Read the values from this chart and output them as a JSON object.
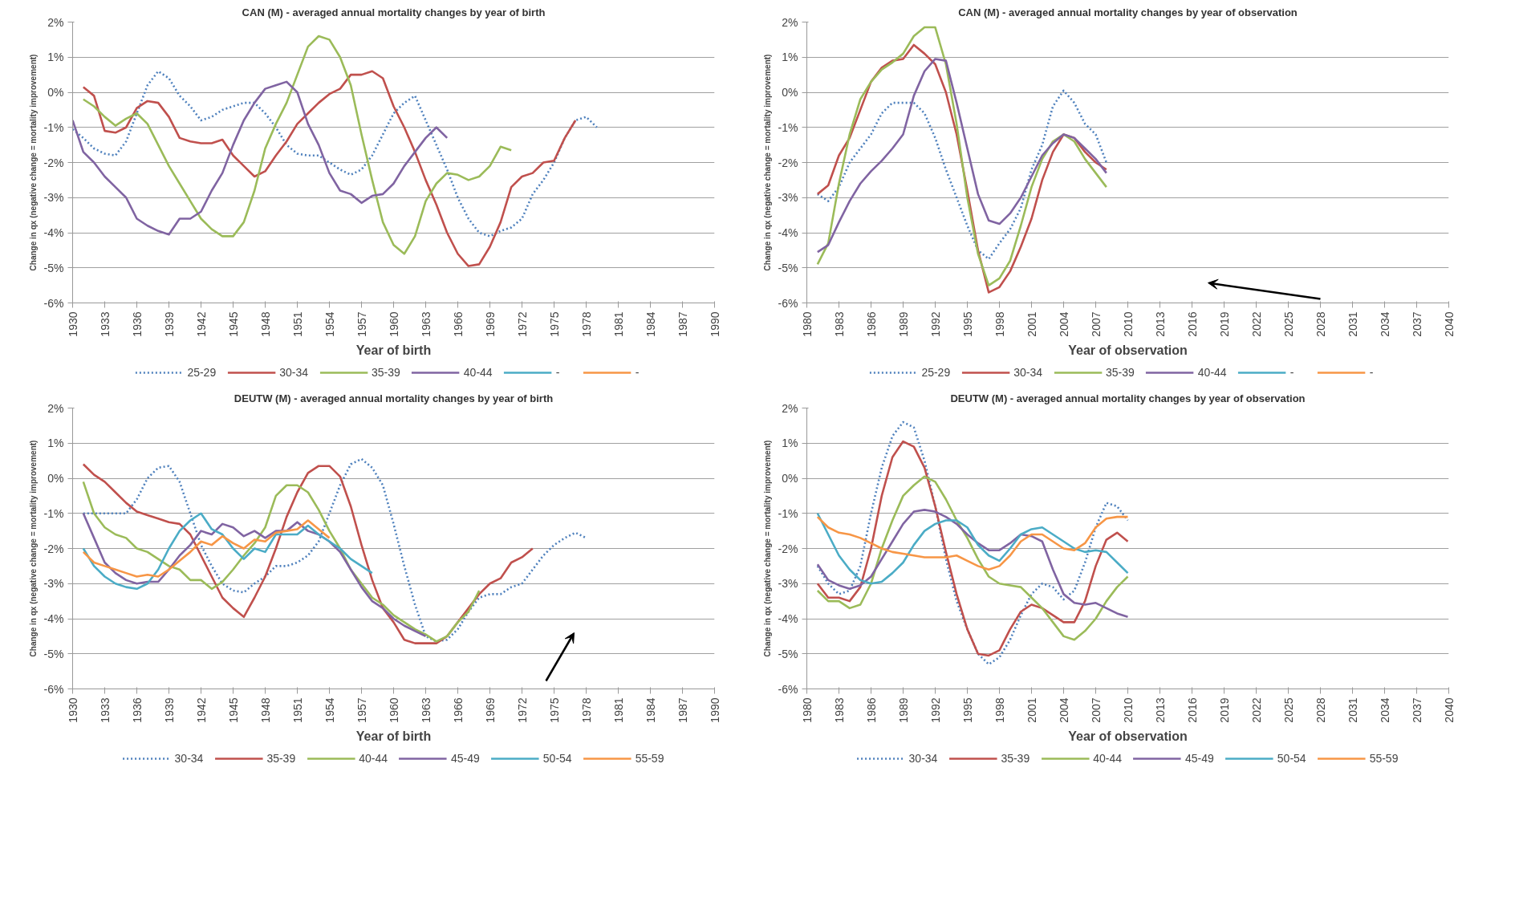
{
  "chart_data": [
    {
      "type": "line",
      "title": "CAN (M) - averaged annual mortality changes by year of birth",
      "xlabel": "Year of birth",
      "ylabel": "Change in qx (negative change = mortality improvement)",
      "x": [
        1930,
        1931,
        1932,
        1933,
        1934,
        1935,
        1936,
        1937,
        1938,
        1939,
        1940,
        1941,
        1942,
        1943,
        1944,
        1945,
        1946,
        1947,
        1948,
        1949,
        1950,
        1951,
        1952,
        1953,
        1954,
        1955,
        1956,
        1957,
        1958,
        1959,
        1960,
        1961,
        1962,
        1963,
        1964,
        1965,
        1966,
        1967,
        1968,
        1969,
        1970,
        1971,
        1972,
        1973,
        1974,
        1975,
        1976,
        1977,
        1978,
        1979
      ],
      "xlim": [
        1930,
        1990
      ],
      "xticks": [
        1930,
        1933,
        1936,
        1939,
        1942,
        1945,
        1948,
        1951,
        1954,
        1957,
        1960,
        1963,
        1966,
        1969,
        1972,
        1975,
        1978,
        1981,
        1984,
        1987,
        1990
      ],
      "ylim": [
        -6,
        2
      ],
      "yticks": [
        {
          "value": -6,
          "label": "-6%"
        },
        {
          "value": -5,
          "label": "-5%"
        },
        {
          "value": -4,
          "label": "-4%"
        },
        {
          "value": -3,
          "label": "-3%"
        },
        {
          "value": -2,
          "label": "-2%"
        },
        {
          "value": -1,
          "label": "-1%"
        },
        {
          "value": 0,
          "label": "0%"
        },
        {
          "value": 1,
          "label": "1%"
        },
        {
          "value": 2,
          "label": "2%"
        }
      ],
      "grid": "y",
      "legend": "bottom",
      "series": [
        {
          "name": "25-29",
          "color": "#4f81bd",
          "line_style": "dotted",
          "values": [
            -1.05,
            -1.3,
            -1.6,
            -1.75,
            -1.8,
            -1.4,
            -0.6,
            0.2,
            0.6,
            0.4,
            -0.1,
            -0.4,
            -0.8,
            -0.7,
            -0.5,
            -0.4,
            -0.3,
            -0.3,
            -0.6,
            -1.0,
            -1.5,
            -1.75,
            -1.8,
            -1.8,
            -2.0,
            -2.2,
            -2.35,
            -2.2,
            -1.8,
            -1.2,
            -0.6,
            -0.3,
            -0.1,
            -0.8,
            -1.5,
            -2.2,
            -3.0,
            -3.6,
            -4.0,
            -4.1,
            -3.95,
            -3.85,
            -3.6,
            -2.9,
            -2.5,
            -2.0,
            -1.3,
            -0.8,
            -0.7,
            -1.0
          ]
        },
        {
          "name": "30-34",
          "color": "#c0504d",
          "values": [
            null,
            0.15,
            -0.1,
            -1.1,
            -1.15,
            -1.0,
            -0.45,
            -0.25,
            -0.3,
            -0.7,
            -1.3,
            -1.4,
            -1.45,
            -1.45,
            -1.35,
            -1.8,
            -2.1,
            -2.4,
            -2.25,
            -1.8,
            -1.4,
            -0.9,
            -0.6,
            -0.3,
            -0.05,
            0.1,
            0.5,
            0.5,
            0.6,
            0.4,
            -0.4,
            -1.0,
            -1.7,
            -2.5,
            -3.2,
            -4.0,
            -4.6,
            -4.95,
            -4.9,
            -4.4,
            -3.7,
            -2.7,
            -2.4,
            -2.3,
            -2.0,
            -1.95,
            -1.3,
            -0.8,
            null,
            null
          ]
        },
        {
          "name": "35-39",
          "color": "#9bbb59",
          "values": [
            null,
            -0.2,
            -0.4,
            -0.7,
            -0.95,
            -0.75,
            -0.6,
            -0.9,
            -1.5,
            -2.1,
            -2.6,
            -3.1,
            -3.6,
            -3.9,
            -4.1,
            -4.1,
            -3.7,
            -2.8,
            -1.6,
            -0.9,
            -0.3,
            0.5,
            1.3,
            1.6,
            1.5,
            1.0,
            0.2,
            -1.2,
            -2.5,
            -3.7,
            -4.35,
            -4.6,
            -4.1,
            -3.1,
            -2.6,
            -2.3,
            -2.35,
            -2.5,
            -2.4,
            -2.1,
            -1.55,
            -1.65,
            null,
            null,
            null,
            null,
            null,
            null,
            null,
            null
          ]
        },
        {
          "name": "40-44",
          "color": "#8064a2",
          "values": [
            -0.8,
            -1.7,
            -2.0,
            -2.4,
            -2.7,
            -3.0,
            -3.6,
            -3.8,
            -3.95,
            -4.05,
            -3.6,
            -3.6,
            -3.4,
            -2.8,
            -2.3,
            -1.5,
            -0.8,
            -0.3,
            0.1,
            0.2,
            0.3,
            0.0,
            -0.9,
            -1.5,
            -2.3,
            -2.8,
            -2.9,
            -3.15,
            -2.95,
            -2.9,
            -2.6,
            -2.1,
            -1.7,
            -1.3,
            -1.0,
            -1.3,
            null,
            null,
            null,
            null,
            null,
            null,
            null,
            null,
            null,
            null,
            null,
            null,
            null,
            null
          ]
        },
        {
          "name": "-",
          "color": "#4bacc6",
          "values": [
            null,
            null,
            null,
            null,
            null,
            null,
            null,
            null,
            null,
            null,
            null,
            null,
            null,
            null,
            null,
            null,
            null,
            null,
            null,
            null,
            null,
            null,
            null,
            null,
            null,
            null,
            null,
            null,
            null,
            null,
            null,
            null,
            null,
            null,
            null,
            null,
            null,
            null,
            null,
            null,
            null,
            null,
            null,
            null,
            null,
            null,
            null,
            null,
            null,
            null
          ]
        },
        {
          "name": "-",
          "color": "#f79646",
          "values": [
            null,
            null,
            null,
            null,
            null,
            null,
            null,
            null,
            null,
            null,
            null,
            null,
            null,
            null,
            null,
            null,
            null,
            null,
            null,
            null,
            null,
            null,
            null,
            null,
            null,
            null,
            null,
            null,
            null,
            null,
            null,
            null,
            null,
            null,
            null,
            null,
            null,
            null,
            null,
            null,
            null,
            null,
            null,
            null,
            null,
            null,
            null,
            null,
            null,
            null
          ]
        }
      ]
    },
    {
      "type": "line",
      "title": "CAN (M) - averaged annual mortality changes by year of observation",
      "xlabel": "Year of observation",
      "ylabel": "Change in qx (negative change = mortality improvement)",
      "x": [
        1981,
        1982,
        1983,
        1984,
        1985,
        1986,
        1987,
        1988,
        1989,
        1990,
        1991,
        1992,
        1993,
        1994,
        1995,
        1996,
        1997,
        1998,
        1999,
        2000,
        2001,
        2002,
        2003,
        2004,
        2005,
        2006,
        2007,
        2008
      ],
      "xlim": [
        1980,
        2040
      ],
      "xticks": [
        1980,
        1983,
        1986,
        1989,
        1992,
        1995,
        1998,
        2001,
        2004,
        2007,
        2010,
        2013,
        2016,
        2019,
        2022,
        2025,
        2028,
        2031,
        2034,
        2037,
        2040
      ],
      "ylim": [
        -6,
        2
      ],
      "yticks": [
        {
          "value": -6,
          "label": "-6%"
        },
        {
          "value": -5,
          "label": "-5%"
        },
        {
          "value": -4,
          "label": "-4%"
        },
        {
          "value": -3,
          "label": "-3%"
        },
        {
          "value": -2,
          "label": "-2%"
        },
        {
          "value": -1,
          "label": "-1%"
        },
        {
          "value": 0,
          "label": "0%"
        },
        {
          "value": 1,
          "label": "1%"
        },
        {
          "value": 2,
          "label": "2%"
        }
      ],
      "grid": "y",
      "legend": "bottom",
      "series": [
        {
          "name": "25-29",
          "color": "#4f81bd",
          "line_style": "dotted",
          "values": [
            -2.9,
            -3.1,
            -2.7,
            -2.0,
            -1.6,
            -1.2,
            -0.6,
            -0.3,
            -0.3,
            -0.3,
            -0.6,
            -1.3,
            -2.2,
            -3.0,
            -3.8,
            -4.5,
            -4.75,
            -4.3,
            -3.9,
            -3.3,
            -2.2,
            -1.5,
            -0.4,
            0.05,
            -0.3,
            -0.9,
            -1.2,
            -2.0
          ]
        },
        {
          "name": "30-34",
          "color": "#c0504d",
          "values": [
            -2.9,
            -2.65,
            -1.8,
            -1.3,
            -0.5,
            0.3,
            0.7,
            0.9,
            0.95,
            1.35,
            1.1,
            0.8,
            0.0,
            -1.2,
            -2.8,
            -4.5,
            -5.7,
            -5.55,
            -5.1,
            -4.4,
            -3.6,
            -2.5,
            -1.7,
            -1.2,
            -1.3,
            -1.7,
            -2.0,
            -2.2
          ]
        },
        {
          "name": "35-39",
          "color": "#9bbb59",
          "values": [
            -4.9,
            -4.3,
            -2.6,
            -1.2,
            -0.2,
            0.3,
            0.65,
            0.85,
            1.1,
            1.6,
            1.85,
            1.85,
            0.8,
            -0.9,
            -3.0,
            -4.6,
            -5.5,
            -5.3,
            -4.8,
            -3.8,
            -2.7,
            -1.9,
            -1.4,
            -1.2,
            -1.4,
            -1.9,
            -2.3,
            -2.7
          ]
        },
        {
          "name": "40-44",
          "color": "#8064a2",
          "values": [
            -4.55,
            -4.35,
            -3.7,
            -3.1,
            -2.6,
            -2.25,
            -1.95,
            -1.6,
            -1.2,
            -0.1,
            0.6,
            0.95,
            0.9,
            -0.3,
            -1.6,
            -2.9,
            -3.65,
            -3.75,
            -3.45,
            -3.0,
            -2.4,
            -1.8,
            -1.45,
            -1.2,
            -1.3,
            -1.6,
            -1.9,
            -2.3
          ]
        },
        {
          "name": "-",
          "color": "#4bacc6",
          "values": [
            null,
            null,
            null,
            null,
            null,
            null,
            null,
            null,
            null,
            null,
            null,
            null,
            null,
            null,
            null,
            null,
            null,
            null,
            null,
            null,
            null,
            null,
            null,
            null,
            null,
            null,
            null,
            null
          ]
        },
        {
          "name": "-",
          "color": "#f79646",
          "values": [
            null,
            null,
            null,
            null,
            null,
            null,
            null,
            null,
            null,
            null,
            null,
            null,
            null,
            null,
            null,
            null,
            null,
            null,
            null,
            null,
            null,
            null,
            null,
            null,
            null,
            null,
            null,
            null
          ]
        }
      ]
    },
    {
      "type": "line",
      "title": "DEUTW (M) - averaged annual mortality changes by year of birth",
      "xlabel": "Year of birth",
      "ylabel": "Change in qx (negative change = mortality improvement)",
      "x": [
        1931,
        1932,
        1933,
        1934,
        1935,
        1936,
        1937,
        1938,
        1939,
        1940,
        1941,
        1942,
        1943,
        1944,
        1945,
        1946,
        1947,
        1948,
        1949,
        1950,
        1951,
        1952,
        1953,
        1954,
        1955,
        1956,
        1957,
        1958,
        1959,
        1960,
        1961,
        1962,
        1963,
        1964,
        1965,
        1966,
        1967,
        1968,
        1969,
        1970,
        1971,
        1972,
        1973,
        1974,
        1975,
        1976,
        1977,
        1978
      ],
      "xlim": [
        1930,
        1990
      ],
      "xticks": [
        1930,
        1933,
        1936,
        1939,
        1942,
        1945,
        1948,
        1951,
        1954,
        1957,
        1960,
        1963,
        1966,
        1969,
        1972,
        1975,
        1978,
        1981,
        1984,
        1987,
        1990
      ],
      "ylim": [
        -6,
        2
      ],
      "yticks": [
        {
          "value": -6,
          "label": "-6%"
        },
        {
          "value": -5,
          "label": "-5%"
        },
        {
          "value": -4,
          "label": "-4%"
        },
        {
          "value": -3,
          "label": "-3%"
        },
        {
          "value": -2,
          "label": "-2%"
        },
        {
          "value": -1,
          "label": "-1%"
        },
        {
          "value": 0,
          "label": "0%"
        },
        {
          "value": 1,
          "label": "1%"
        },
        {
          "value": 2,
          "label": "2%"
        }
      ],
      "grid": "y",
      "legend": "bottom",
      "series": [
        {
          "name": "30-34",
          "color": "#4f81bd",
          "line_style": "dotted",
          "values": [
            -1.0,
            -1.0,
            -1.0,
            -1.0,
            -1.0,
            -0.6,
            0.0,
            0.3,
            0.35,
            -0.1,
            -1.0,
            -1.9,
            -2.5,
            -3.0,
            -3.2,
            -3.25,
            -3.0,
            -2.8,
            -2.5,
            -2.5,
            -2.4,
            -2.2,
            -1.8,
            -1.0,
            -0.2,
            0.4,
            0.55,
            0.3,
            -0.2,
            -1.3,
            -2.5,
            -3.6,
            -4.5,
            -4.65,
            -4.6,
            -4.3,
            -3.8,
            -3.4,
            -3.3,
            -3.3,
            -3.1,
            -3.0,
            -2.6,
            -2.2,
            -1.9,
            -1.7,
            -1.55,
            -1.7
          ]
        },
        {
          "name": "35-39",
          "color": "#c0504d",
          "values": [
            0.4,
            0.1,
            -0.1,
            -0.4,
            -0.7,
            -0.95,
            -1.05,
            -1.15,
            -1.25,
            -1.3,
            -1.6,
            -2.2,
            -2.8,
            -3.4,
            -3.7,
            -3.95,
            -3.4,
            -2.8,
            -2.0,
            -1.1,
            -0.4,
            0.15,
            0.35,
            0.35,
            0.05,
            -0.8,
            -1.9,
            -2.9,
            -3.7,
            -4.1,
            -4.6,
            -4.7,
            -4.7,
            -4.7,
            -4.5,
            -4.1,
            -3.7,
            -3.3,
            -3.0,
            -2.85,
            -2.4,
            -2.25,
            -2.0,
            null,
            null,
            null,
            null,
            null
          ]
        },
        {
          "name": "40-44",
          "color": "#9bbb59",
          "values": [
            -0.1,
            -1.0,
            -1.4,
            -1.6,
            -1.7,
            -2.0,
            -2.1,
            -2.3,
            -2.5,
            -2.6,
            -2.9,
            -2.9,
            -3.15,
            -2.95,
            -2.6,
            -2.2,
            -1.85,
            -1.4,
            -0.5,
            -0.2,
            -0.2,
            -0.4,
            -0.9,
            -1.5,
            -2.0,
            -2.6,
            -3.0,
            -3.4,
            -3.6,
            -3.9,
            -4.1,
            -4.3,
            -4.45,
            -4.65,
            -4.5,
            -4.1,
            -3.8,
            -3.2,
            null,
            null,
            null,
            null,
            null,
            null,
            null,
            null,
            null,
            null
          ]
        },
        {
          "name": "45-49",
          "color": "#8064a2",
          "values": [
            -1.0,
            -1.7,
            -2.4,
            -2.7,
            -2.9,
            -3.0,
            -2.95,
            -2.95,
            -2.6,
            -2.2,
            -1.9,
            -1.5,
            -1.6,
            -1.3,
            -1.4,
            -1.65,
            -1.5,
            -1.7,
            -1.5,
            -1.5,
            -1.25,
            -1.5,
            -1.6,
            -1.8,
            -2.1,
            -2.6,
            -3.1,
            -3.5,
            -3.7,
            -4.0,
            -4.2,
            -4.35,
            -4.5,
            null,
            null,
            null,
            null,
            null,
            null,
            null,
            null,
            null,
            null,
            null,
            null,
            null,
            null,
            null
          ]
        },
        {
          "name": "50-54",
          "color": "#4bacc6",
          "values": [
            -2.0,
            -2.5,
            -2.8,
            -3.0,
            -3.1,
            -3.15,
            -3.0,
            -2.6,
            -2.0,
            -1.5,
            -1.2,
            -1.0,
            -1.45,
            -1.6,
            -2.0,
            -2.3,
            -2.0,
            -2.1,
            -1.6,
            -1.6,
            -1.6,
            -1.35,
            -1.6,
            -1.8,
            -2.0,
            -2.3,
            -2.5,
            -2.7,
            null,
            null,
            null,
            null,
            null,
            null,
            null,
            null,
            null,
            null,
            null,
            null,
            null,
            null,
            null,
            null,
            null,
            null,
            null,
            null
          ]
        },
        {
          "name": "55-59",
          "color": "#f79646",
          "values": [
            -2.1,
            -2.4,
            -2.5,
            -2.6,
            -2.7,
            -2.8,
            -2.75,
            -2.8,
            -2.6,
            -2.35,
            -2.1,
            -1.8,
            -1.9,
            -1.65,
            -1.85,
            -2.0,
            -1.75,
            -1.8,
            -1.55,
            -1.5,
            -1.45,
            -1.2,
            -1.45,
            -1.7,
            null,
            null,
            null,
            null,
            null,
            null,
            null,
            null,
            null,
            null,
            null,
            null,
            null,
            null,
            null,
            null,
            null,
            null,
            null,
            null,
            null,
            null,
            null,
            null
          ]
        }
      ]
    },
    {
      "type": "line",
      "title": "DEUTW (M) - averaged annual mortality changes by year of observation",
      "xlabel": "Year of observation",
      "ylabel": "Change in qx (negative change = mortality improvement)",
      "x": [
        1981,
        1982,
        1983,
        1984,
        1985,
        1986,
        1987,
        1988,
        1989,
        1990,
        1991,
        1992,
        1993,
        1994,
        1995,
        1996,
        1997,
        1998,
        1999,
        2000,
        2001,
        2002,
        2003,
        2004,
        2005,
        2006,
        2007,
        2008,
        2009,
        2010
      ],
      "xlim": [
        1980,
        2040
      ],
      "xticks": [
        1980,
        1983,
        1986,
        1989,
        1992,
        1995,
        1998,
        2001,
        2004,
        2007,
        2010,
        2013,
        2016,
        2019,
        2022,
        2025,
        2028,
        2031,
        2034,
        2037,
        2040
      ],
      "ylim": [
        -6,
        2
      ],
      "yticks": [
        {
          "value": -6,
          "label": "-6%"
        },
        {
          "value": -5,
          "label": "-5%"
        },
        {
          "value": -4,
          "label": "-4%"
        },
        {
          "value": -3,
          "label": "-3%"
        },
        {
          "value": -2,
          "label": "-2%"
        },
        {
          "value": -1,
          "label": "-1%"
        },
        {
          "value": 0,
          "label": "0%"
        },
        {
          "value": 1,
          "label": "1%"
        },
        {
          "value": 2,
          "label": "2%"
        }
      ],
      "grid": "y",
      "legend": "bottom",
      "series": [
        {
          "name": "30-34",
          "color": "#4f81bd",
          "line_style": "dotted",
          "values": [
            -2.5,
            -3.0,
            -3.3,
            -3.2,
            -2.5,
            -1.0,
            0.3,
            1.2,
            1.6,
            1.45,
            0.5,
            -0.8,
            -2.3,
            -3.5,
            -4.3,
            -5.0,
            -5.3,
            -5.1,
            -4.6,
            -3.9,
            -3.3,
            -3.0,
            -3.1,
            -3.45,
            -3.2,
            -2.4,
            -1.4,
            -0.7,
            -0.8,
            -1.2
          ]
        },
        {
          "name": "35-39",
          "color": "#c0504d",
          "values": [
            -3.0,
            -3.4,
            -3.4,
            -3.5,
            -3.1,
            -2.0,
            -0.5,
            0.6,
            1.05,
            0.9,
            0.3,
            -0.8,
            -2.1,
            -3.3,
            -4.3,
            -5.0,
            -5.05,
            -4.9,
            -4.3,
            -3.8,
            -3.6,
            -3.7,
            -3.9,
            -4.1,
            -4.1,
            -3.5,
            -2.5,
            -1.75,
            -1.55,
            -1.8
          ]
        },
        {
          "name": "40-44",
          "color": "#9bbb59",
          "values": [
            -3.2,
            -3.5,
            -3.5,
            -3.7,
            -3.6,
            -3.0,
            -2.0,
            -1.2,
            -0.5,
            -0.2,
            0.05,
            -0.1,
            -0.6,
            -1.2,
            -1.7,
            -2.3,
            -2.8,
            -3.0,
            -3.05,
            -3.1,
            -3.4,
            -3.7,
            -4.1,
            -4.5,
            -4.6,
            -4.35,
            -4.0,
            -3.5,
            -3.1,
            -2.8
          ]
        },
        {
          "name": "45-49",
          "color": "#8064a2",
          "values": [
            -2.45,
            -2.9,
            -3.05,
            -3.15,
            -3.05,
            -2.8,
            -2.3,
            -1.8,
            -1.3,
            -0.95,
            -0.9,
            -0.95,
            -1.1,
            -1.3,
            -1.6,
            -1.85,
            -2.05,
            -2.05,
            -1.85,
            -1.6,
            -1.65,
            -1.8,
            -2.6,
            -3.3,
            -3.55,
            -3.6,
            -3.55,
            -3.7,
            -3.85,
            -3.95
          ]
        },
        {
          "name": "50-54",
          "color": "#4bacc6",
          "values": [
            -1.0,
            -1.6,
            -2.2,
            -2.6,
            -2.9,
            -3.0,
            -2.95,
            -2.7,
            -2.4,
            -1.9,
            -1.5,
            -1.3,
            -1.2,
            -1.2,
            -1.4,
            -1.9,
            -2.2,
            -2.35,
            -2.0,
            -1.6,
            -1.45,
            -1.4,
            -1.6,
            -1.8,
            -2.0,
            -2.1,
            -2.05,
            -2.1,
            -2.4,
            -2.7
          ]
        },
        {
          "name": "55-59",
          "color": "#f79646",
          "values": [
            -1.1,
            -1.4,
            -1.55,
            -1.6,
            -1.7,
            -1.85,
            -2.0,
            -2.1,
            -2.15,
            -2.2,
            -2.25,
            -2.25,
            -2.25,
            -2.2,
            -2.35,
            -2.5,
            -2.6,
            -2.5,
            -2.2,
            -1.8,
            -1.6,
            -1.6,
            -1.8,
            -2.0,
            -2.05,
            -1.85,
            -1.4,
            -1.15,
            -1.1,
            -1.1
          ]
        }
      ]
    }
  ]
}
